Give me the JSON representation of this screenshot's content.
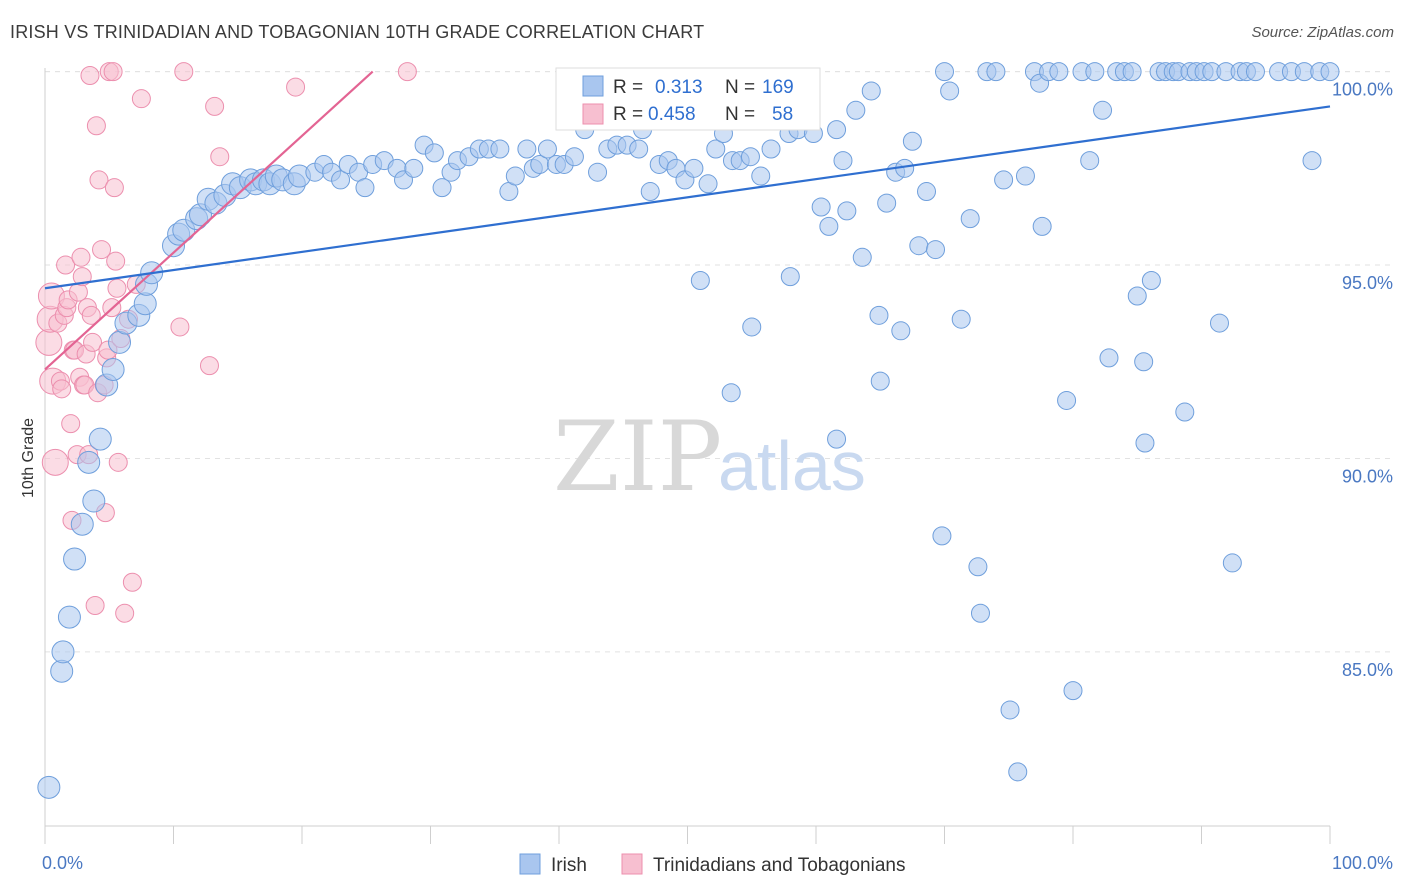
{
  "header": {
    "title": "IRISH VS TRINIDADIAN AND TOBAGONIAN 10TH GRADE CORRELATION CHART",
    "source": "Source: ZipAtlas.com"
  },
  "watermark": {
    "zip": "ZIP",
    "atlas": "atlas"
  },
  "colors": {
    "irish_fill": "#a9c6ef",
    "irish_stroke": "#6f9fdc",
    "irish_line": "#2f6fd0",
    "tt_fill": "#f7bfd0",
    "tt_stroke": "#ec8fae",
    "tt_line": "#e36493",
    "grid": "#e2e2e2",
    "tick_text": "#4a78c2"
  },
  "legend_box": {
    "rows": [
      {
        "r_label": "R =",
        "r_value": "0.313",
        "n_label": "N =",
        "n_value": "169"
      },
      {
        "r_label": "R =",
        "r_value": "0.458",
        "n_label": "N =",
        "n_value": "58"
      }
    ]
  },
  "bottom_legend": [
    "Irish",
    "Trinidadians and Tobagonians"
  ],
  "chart_data": {
    "type": "scatter",
    "title": "IRISH VS TRINIDADIAN AND TOBAGONIAN 10TH GRADE CORRELATION CHART",
    "xlabel": "",
    "ylabel": "10th Grade",
    "xlim": [
      0,
      100
    ],
    "ylim": [
      80.5,
      100.3
    ],
    "x_tick_labels": [
      "0.0%",
      "100.0%"
    ],
    "y_ticks": [
      85,
      90,
      95,
      100
    ],
    "y_tick_labels": [
      "85.0%",
      "90.0%",
      "95.0%",
      "100.0%"
    ],
    "grid": true,
    "legend_position": "top-center",
    "series": [
      {
        "name": "Irish",
        "R": 0.313,
        "N": 169,
        "trend": {
          "x": [
            0,
            100
          ],
          "y": [
            94.4,
            99.1
          ]
        },
        "points": [
          [
            0.3,
            81.5
          ],
          [
            1.3,
            84.5
          ],
          [
            1.4,
            85.0
          ],
          [
            1.9,
            85.9
          ],
          [
            2.3,
            87.4
          ],
          [
            2.9,
            88.3
          ],
          [
            3.8,
            88.9
          ],
          [
            3.4,
            89.9
          ],
          [
            4.3,
            90.5
          ],
          [
            4.8,
            91.9
          ],
          [
            5.3,
            92.3
          ],
          [
            5.8,
            93.0
          ],
          [
            6.3,
            93.5
          ],
          [
            7.3,
            93.7
          ],
          [
            7.8,
            94.0
          ],
          [
            7.9,
            94.5
          ],
          [
            8.3,
            94.8
          ],
          [
            10.0,
            95.5
          ],
          [
            10.4,
            95.8
          ],
          [
            10.8,
            95.9
          ],
          [
            11.8,
            96.2
          ],
          [
            12.1,
            96.3
          ],
          [
            12.7,
            96.7
          ],
          [
            13.3,
            96.6
          ],
          [
            14.0,
            96.8
          ],
          [
            14.6,
            97.1
          ],
          [
            15.2,
            97.0
          ],
          [
            16.0,
            97.2
          ],
          [
            16.4,
            97.1
          ],
          [
            17.0,
            97.2
          ],
          [
            17.5,
            97.1
          ],
          [
            18.0,
            97.3
          ],
          [
            18.5,
            97.2
          ],
          [
            19.4,
            97.1
          ],
          [
            19.8,
            97.3
          ],
          [
            21.0,
            97.4
          ],
          [
            21.7,
            97.6
          ],
          [
            22.3,
            97.4
          ],
          [
            23.0,
            97.2
          ],
          [
            23.6,
            97.6
          ],
          [
            24.4,
            97.4
          ],
          [
            24.9,
            97.0
          ],
          [
            25.5,
            97.6
          ],
          [
            26.4,
            97.7
          ],
          [
            27.4,
            97.5
          ],
          [
            27.9,
            97.2
          ],
          [
            28.7,
            97.5
          ],
          [
            29.5,
            98.1
          ],
          [
            30.3,
            97.9
          ],
          [
            30.9,
            97.0
          ],
          [
            31.6,
            97.4
          ],
          [
            32.1,
            97.7
          ],
          [
            33.0,
            97.8
          ],
          [
            33.8,
            98.0
          ],
          [
            34.5,
            98.0
          ],
          [
            35.4,
            98.0
          ],
          [
            36.1,
            96.9
          ],
          [
            36.6,
            97.3
          ],
          [
            37.5,
            98.0
          ],
          [
            38.0,
            97.5
          ],
          [
            38.5,
            97.6
          ],
          [
            39.1,
            98.0
          ],
          [
            39.8,
            97.6
          ],
          [
            40.4,
            97.6
          ],
          [
            41.2,
            97.8
          ],
          [
            42.0,
            98.5
          ],
          [
            43.0,
            97.4
          ],
          [
            43.8,
            98.0
          ],
          [
            44.5,
            98.1
          ],
          [
            45.3,
            98.1
          ],
          [
            46.2,
            98.0
          ],
          [
            46.5,
            98.5
          ],
          [
            47.1,
            96.9
          ],
          [
            47.8,
            97.6
          ],
          [
            48.5,
            97.7
          ],
          [
            49.1,
            97.5
          ],
          [
            49.8,
            97.2
          ],
          [
            50.5,
            97.5
          ],
          [
            51.0,
            94.6
          ],
          [
            51.6,
            97.1
          ],
          [
            52.2,
            98.0
          ],
          [
            52.8,
            98.4
          ],
          [
            53.5,
            97.7
          ],
          [
            54.1,
            97.7
          ],
          [
            54.9,
            97.8
          ],
          [
            55.7,
            97.3
          ],
          [
            56.5,
            98.0
          ],
          [
            57.0,
            99.3
          ],
          [
            57.9,
            98.4
          ],
          [
            58.6,
            98.5
          ],
          [
            59.2,
            99.4
          ],
          [
            59.8,
            98.4
          ],
          [
            60.4,
            96.5
          ],
          [
            61.0,
            96.0
          ],
          [
            61.6,
            98.5
          ],
          [
            62.1,
            97.7
          ],
          [
            62.4,
            96.4
          ],
          [
            63.1,
            99.0
          ],
          [
            63.6,
            95.2
          ],
          [
            64.3,
            99.5
          ],
          [
            64.9,
            93.7
          ],
          [
            65.5,
            96.6
          ],
          [
            66.2,
            97.4
          ],
          [
            66.9,
            97.5
          ],
          [
            67.5,
            98.2
          ],
          [
            68.0,
            95.5
          ],
          [
            68.6,
            96.9
          ],
          [
            69.3,
            95.4
          ],
          [
            70.0,
            100.0
          ],
          [
            70.4,
            99.5
          ],
          [
            71.3,
            93.6
          ],
          [
            72.0,
            96.2
          ],
          [
            72.6,
            87.2
          ],
          [
            73.3,
            100.0
          ],
          [
            74.0,
            100.0
          ],
          [
            74.6,
            97.2
          ],
          [
            75.1,
            83.5
          ],
          [
            75.7,
            81.9
          ],
          [
            76.3,
            97.3
          ],
          [
            77.0,
            100.0
          ],
          [
            77.4,
            99.7
          ],
          [
            78.1,
            100.0
          ],
          [
            78.9,
            100.0
          ],
          [
            79.5,
            91.5
          ],
          [
            80.0,
            84.0
          ],
          [
            80.7,
            100.0
          ],
          [
            81.3,
            97.7
          ],
          [
            81.7,
            100.0
          ],
          [
            82.3,
            99.0
          ],
          [
            82.8,
            92.6
          ],
          [
            83.4,
            100.0
          ],
          [
            84.0,
            100.0
          ],
          [
            84.6,
            100.0
          ],
          [
            85.0,
            94.2
          ],
          [
            85.6,
            90.4
          ],
          [
            86.1,
            94.6
          ],
          [
            86.7,
            100.0
          ],
          [
            87.2,
            100.0
          ],
          [
            87.8,
            100.0
          ],
          [
            88.2,
            100.0
          ],
          [
            88.7,
            91.2
          ],
          [
            89.1,
            100.0
          ],
          [
            89.6,
            100.0
          ],
          [
            90.2,
            100.0
          ],
          [
            90.8,
            100.0
          ],
          [
            91.4,
            93.5
          ],
          [
            91.9,
            100.0
          ],
          [
            92.4,
            87.3
          ],
          [
            93.0,
            100.0
          ],
          [
            93.5,
            100.0
          ],
          [
            94.2,
            100.0
          ],
          [
            96.0,
            100.0
          ],
          [
            97.0,
            100.0
          ],
          [
            98.0,
            100.0
          ],
          [
            98.6,
            97.7
          ],
          [
            99.2,
            100.0
          ],
          [
            100.0,
            100.0
          ],
          [
            66.6,
            93.3
          ],
          [
            55.0,
            93.4
          ],
          [
            58.0,
            94.7
          ],
          [
            61.6,
            90.5
          ],
          [
            69.8,
            88.0
          ],
          [
            53.4,
            91.7
          ],
          [
            77.6,
            96.0
          ],
          [
            85.5,
            92.5
          ],
          [
            72.8,
            86.0
          ],
          [
            65.0,
            92.0
          ]
        ]
      },
      {
        "name": "Trinidadians and Tobagonians",
        "R": 0.458,
        "N": 58,
        "trend": {
          "x": [
            0,
            25.5
          ],
          "y": [
            92.3,
            100.0
          ]
        },
        "points": [
          [
            0.3,
            93.0
          ],
          [
            0.4,
            93.6
          ],
          [
            0.5,
            94.2
          ],
          [
            0.6,
            92.0
          ],
          [
            0.8,
            89.9
          ],
          [
            1.0,
            93.5
          ],
          [
            1.2,
            92.0
          ],
          [
            1.3,
            91.8
          ],
          [
            1.5,
            93.7
          ],
          [
            1.6,
            95.0
          ],
          [
            1.7,
            93.9
          ],
          [
            1.8,
            94.1
          ],
          [
            2.0,
            90.9
          ],
          [
            2.1,
            88.4
          ],
          [
            2.2,
            92.8
          ],
          [
            2.3,
            92.8
          ],
          [
            2.5,
            90.1
          ],
          [
            2.6,
            94.3
          ],
          [
            2.7,
            92.1
          ],
          [
            2.8,
            95.2
          ],
          [
            2.9,
            94.7
          ],
          [
            3.0,
            91.9
          ],
          [
            3.1,
            91.9
          ],
          [
            3.2,
            92.7
          ],
          [
            3.3,
            93.9
          ],
          [
            3.4,
            90.1
          ],
          [
            3.5,
            99.9
          ],
          [
            3.6,
            93.7
          ],
          [
            3.7,
            93.0
          ],
          [
            3.9,
            86.2
          ],
          [
            4.0,
            98.6
          ],
          [
            4.1,
            91.7
          ],
          [
            4.2,
            97.2
          ],
          [
            4.4,
            95.4
          ],
          [
            4.6,
            91.9
          ],
          [
            4.7,
            88.6
          ],
          [
            4.8,
            92.6
          ],
          [
            4.9,
            92.8
          ],
          [
            5.0,
            100.0
          ],
          [
            5.2,
            93.9
          ],
          [
            5.4,
            97.0
          ],
          [
            5.5,
            95.1
          ],
          [
            5.7,
            89.9
          ],
          [
            5.9,
            93.1
          ],
          [
            6.2,
            86.0
          ],
          [
            6.5,
            93.6
          ],
          [
            6.8,
            86.8
          ],
          [
            7.1,
            94.5
          ],
          [
            7.5,
            99.3
          ],
          [
            10.5,
            93.4
          ],
          [
            10.8,
            100.0
          ],
          [
            12.8,
            92.4
          ],
          [
            13.2,
            99.1
          ],
          [
            13.6,
            97.8
          ],
          [
            19.5,
            99.6
          ],
          [
            28.2,
            100.0
          ],
          [
            5.3,
            100.0
          ],
          [
            5.6,
            94.4
          ]
        ]
      }
    ]
  }
}
